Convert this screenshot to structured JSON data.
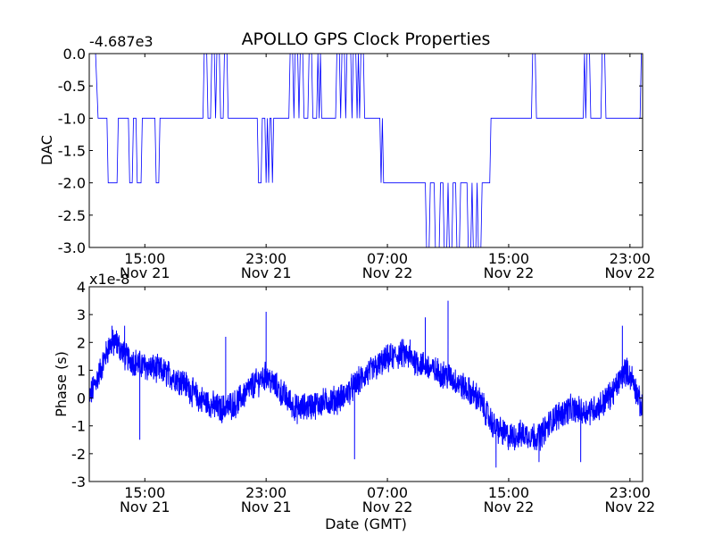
{
  "colors": {
    "series": "#0000ff",
    "axes": "#000000",
    "background": "#ffffff"
  },
  "chart_data": [
    {
      "type": "line",
      "title": "APOLLO GPS Clock Properties",
      "xlabel": "",
      "ylabel": "DAC",
      "y_offset_label": "-4.687e3",
      "ylim": [
        -3.0,
        0.0
      ],
      "xlim": [
        "2008-11-21 11:20",
        "2008-11-22 23:50"
      ],
      "x_ticks": [
        {
          "time": "2008-11-21 15:00",
          "label": "15:00",
          "date_label": "Nov 21"
        },
        {
          "time": "2008-11-21 23:00",
          "label": "23:00",
          "date_label": "Nov 21"
        },
        {
          "time": "2008-11-22 07:00",
          "label": "07:00",
          "date_label": "Nov 22"
        },
        {
          "time": "2008-11-22 15:00",
          "label": "15:00",
          "date_label": "Nov 22"
        },
        {
          "time": "2008-11-22 23:00",
          "label": "23:00",
          "date_label": "Nov 22"
        }
      ],
      "y_ticks": [
        "0.0",
        "-0.5",
        "-1.0",
        "-1.5",
        "-2.0",
        "-2.5",
        "-3.0"
      ],
      "grid": false,
      "series": [
        {
          "color": "#0000ff",
          "points": [
            [
              "2008-11-21 11:20",
              0
            ],
            [
              "2008-11-21 11:45",
              0
            ],
            [
              "2008-11-21 11:55",
              -1
            ],
            [
              "2008-11-21 12:30",
              -1
            ],
            [
              "2008-11-21 12:35",
              -2
            ],
            [
              "2008-11-21 13:10",
              -2
            ],
            [
              "2008-11-21 13:15",
              -1
            ],
            [
              "2008-11-21 13:55",
              -1
            ],
            [
              "2008-11-21 14:00",
              -2
            ],
            [
              "2008-11-21 14:10",
              -2
            ],
            [
              "2008-11-21 14:15",
              -1
            ],
            [
              "2008-11-21 14:25",
              -1
            ],
            [
              "2008-11-21 14:30",
              -2
            ],
            [
              "2008-11-21 14:45",
              -2
            ],
            [
              "2008-11-21 14:50",
              -1
            ],
            [
              "2008-11-21 15:40",
              -1
            ],
            [
              "2008-11-21 15:45",
              -2
            ],
            [
              "2008-11-21 15:55",
              -2
            ],
            [
              "2008-11-21 16:00",
              -1
            ],
            [
              "2008-11-21 18:50",
              -1
            ],
            [
              "2008-11-21 18:55",
              0
            ],
            [
              "2008-11-21 19:05",
              0
            ],
            [
              "2008-11-21 19:10",
              -1
            ],
            [
              "2008-11-21 19:20",
              -1
            ],
            [
              "2008-11-21 19:25",
              0
            ],
            [
              "2008-11-21 19:35",
              0
            ],
            [
              "2008-11-21 19:40",
              -1
            ],
            [
              "2008-11-21 19:45",
              0
            ],
            [
              "2008-11-21 19:55",
              0
            ],
            [
              "2008-11-21 20:00",
              -1
            ],
            [
              "2008-11-21 20:10",
              -1
            ],
            [
              "2008-11-21 20:15",
              0
            ],
            [
              "2008-11-21 20:25",
              0
            ],
            [
              "2008-11-21 20:30",
              -1
            ],
            [
              "2008-11-21 22:25",
              -1
            ],
            [
              "2008-11-21 22:30",
              -2
            ],
            [
              "2008-11-21 22:40",
              -2
            ],
            [
              "2008-11-21 22:45",
              -1
            ],
            [
              "2008-11-21 22:55",
              -1
            ],
            [
              "2008-11-21 23:00",
              -2
            ],
            [
              "2008-11-21 23:05",
              -1
            ],
            [
              "2008-11-21 23:10",
              -2
            ],
            [
              "2008-11-21 23:15",
              -1
            ],
            [
              "2008-11-21 23:20",
              -1
            ],
            [
              "2008-11-21 23:25",
              -2
            ],
            [
              "2008-11-21 23:30",
              -1
            ],
            [
              "2008-11-22 00:30",
              -1
            ],
            [
              "2008-11-22 00:35",
              0
            ],
            [
              "2008-11-22 00:45",
              0
            ],
            [
              "2008-11-22 00:50",
              -1
            ],
            [
              "2008-11-22 00:55",
              0
            ],
            [
              "2008-11-22 01:05",
              0
            ],
            [
              "2008-11-22 01:10",
              -1
            ],
            [
              "2008-11-22 01:15",
              0
            ],
            [
              "2008-11-22 01:25",
              0
            ],
            [
              "2008-11-22 01:30",
              -1
            ],
            [
              "2008-11-22 01:45",
              -1
            ],
            [
              "2008-11-22 01:50",
              0
            ],
            [
              "2008-11-22 02:00",
              0
            ],
            [
              "2008-11-22 02:05",
              -1
            ],
            [
              "2008-11-22 02:20",
              -1
            ],
            [
              "2008-11-22 02:25",
              0
            ],
            [
              "2008-11-22 02:30",
              -1
            ],
            [
              "2008-11-22 02:35",
              0
            ],
            [
              "2008-11-22 02:40",
              -1
            ],
            [
              "2008-11-22 03:35",
              -1
            ],
            [
              "2008-11-22 03:40",
              0
            ],
            [
              "2008-11-22 03:50",
              0
            ],
            [
              "2008-11-22 03:55",
              -1
            ],
            [
              "2008-11-22 04:00",
              0
            ],
            [
              "2008-11-22 04:10",
              0
            ],
            [
              "2008-11-22 04:15",
              -1
            ],
            [
              "2008-11-22 04:20",
              0
            ],
            [
              "2008-11-22 04:35",
              0
            ],
            [
              "2008-11-22 04:40",
              -1
            ],
            [
              "2008-11-22 04:45",
              0
            ],
            [
              "2008-11-22 04:55",
              0
            ],
            [
              "2008-11-22 05:00",
              -1
            ],
            [
              "2008-11-22 05:05",
              0
            ],
            [
              "2008-11-22 05:10",
              -1
            ],
            [
              "2008-11-22 05:15",
              0
            ],
            [
              "2008-11-22 05:25",
              0
            ],
            [
              "2008-11-22 05:30",
              -1
            ],
            [
              "2008-11-22 06:30",
              -1
            ],
            [
              "2008-11-22 06:35",
              -2
            ],
            [
              "2008-11-22 06:40",
              -1
            ],
            [
              "2008-11-22 06:45",
              -2
            ],
            [
              "2008-11-22 09:30",
              -2
            ],
            [
              "2008-11-22 09:35",
              -3
            ],
            [
              "2008-11-22 09:45",
              -3
            ],
            [
              "2008-11-22 09:50",
              -2
            ],
            [
              "2008-11-22 10:05",
              -2
            ],
            [
              "2008-11-22 10:10",
              -3
            ],
            [
              "2008-11-22 10:25",
              -3
            ],
            [
              "2008-11-22 10:30",
              -2
            ],
            [
              "2008-11-22 10:40",
              -2
            ],
            [
              "2008-11-22 10:45",
              -3
            ],
            [
              "2008-11-22 10:55",
              -3
            ],
            [
              "2008-11-22 11:00",
              -2
            ],
            [
              "2008-11-22 11:05",
              -3
            ],
            [
              "2008-11-22 11:15",
              -3
            ],
            [
              "2008-11-22 11:20",
              -2
            ],
            [
              "2008-11-22 11:30",
              -2
            ],
            [
              "2008-11-22 11:35",
              -3
            ],
            [
              "2008-11-22 11:45",
              -3
            ],
            [
              "2008-11-22 11:50",
              -2
            ],
            [
              "2008-11-22 12:15",
              -2
            ],
            [
              "2008-11-22 12:20",
              -3
            ],
            [
              "2008-11-22 12:30",
              -3
            ],
            [
              "2008-11-22 12:35",
              -2
            ],
            [
              "2008-11-22 12:40",
              -3
            ],
            [
              "2008-11-22 12:50",
              -3
            ],
            [
              "2008-11-22 12:55",
              -2
            ],
            [
              "2008-11-22 13:00",
              -3
            ],
            [
              "2008-11-22 13:10",
              -3
            ],
            [
              "2008-11-22 13:15",
              -2
            ],
            [
              "2008-11-22 13:45",
              -2
            ],
            [
              "2008-11-22 13:50",
              -1
            ],
            [
              "2008-11-22 16:30",
              -1
            ],
            [
              "2008-11-22 16:35",
              0
            ],
            [
              "2008-11-22 16:45",
              0
            ],
            [
              "2008-11-22 16:50",
              -1
            ],
            [
              "2008-11-22 19:55",
              -1
            ],
            [
              "2008-11-22 20:00",
              0
            ],
            [
              "2008-11-22 20:05",
              -1
            ],
            [
              "2008-11-22 20:10",
              0
            ],
            [
              "2008-11-22 20:20",
              0
            ],
            [
              "2008-11-22 20:25",
              -1
            ],
            [
              "2008-11-22 21:05",
              -1
            ],
            [
              "2008-11-22 21:10",
              0
            ],
            [
              "2008-11-22 21:20",
              0
            ],
            [
              "2008-11-22 21:25",
              -1
            ],
            [
              "2008-11-22 23:40",
              -1
            ],
            [
              "2008-11-22 23:45",
              0
            ],
            [
              "2008-11-22 23:50",
              0
            ]
          ]
        }
      ]
    },
    {
      "type": "line",
      "title": "",
      "xlabel": "Date (GMT)",
      "ylabel": "Phase (s)",
      "y_scale_label": "x1e-8",
      "ylim": [
        -3,
        4
      ],
      "xlim": [
        "2008-11-21 11:20",
        "2008-11-22 23:50"
      ],
      "x_ticks": [
        {
          "time": "2008-11-21 15:00",
          "label": "15:00",
          "date_label": "Nov 21"
        },
        {
          "time": "2008-11-21 23:00",
          "label": "23:00",
          "date_label": "Nov 21"
        },
        {
          "time": "2008-11-22 07:00",
          "label": "07:00",
          "date_label": "Nov 22"
        },
        {
          "time": "2008-11-22 15:00",
          "label": "15:00",
          "date_label": "Nov 22"
        },
        {
          "time": "2008-11-22 23:00",
          "label": "23:00",
          "date_label": "Nov 22"
        }
      ],
      "y_ticks": [
        "4",
        "3",
        "2",
        "1",
        "0",
        "-1",
        "-2",
        "-3"
      ],
      "grid": false,
      "noise_amplitude": 0.45,
      "series": [
        {
          "color": "#0000ff",
          "trend": [
            [
              "2008-11-21 11:20",
              0.0
            ],
            [
              "2008-11-21 12:00",
              0.9
            ],
            [
              "2008-11-21 12:40",
              1.9
            ],
            [
              "2008-11-21 13:10",
              2.0
            ],
            [
              "2008-11-21 13:40",
              1.5
            ],
            [
              "2008-11-21 14:40",
              1.2
            ],
            [
              "2008-11-21 16:00",
              1.0
            ],
            [
              "2008-11-21 17:30",
              0.6
            ],
            [
              "2008-11-21 18:30",
              0.0
            ],
            [
              "2008-11-21 20:00",
              -0.4
            ],
            [
              "2008-11-21 21:00",
              -0.2
            ],
            [
              "2008-11-21 22:00",
              0.4
            ],
            [
              "2008-11-21 23:00",
              0.8
            ],
            [
              "2008-11-21 23:50",
              0.3
            ],
            [
              "2008-11-22 01:00",
              -0.4
            ],
            [
              "2008-11-22 02:30",
              -0.2
            ],
            [
              "2008-11-22 04:00",
              0.0
            ],
            [
              "2008-11-22 05:30",
              0.8
            ],
            [
              "2008-11-22 07:00",
              1.4
            ],
            [
              "2008-11-22 08:00",
              1.6
            ],
            [
              "2008-11-22 09:00",
              1.3
            ],
            [
              "2008-11-22 10:00",
              1.0
            ],
            [
              "2008-11-22 11:00",
              0.8
            ],
            [
              "2008-11-22 12:00",
              0.4
            ],
            [
              "2008-11-22 13:00",
              0.0
            ],
            [
              "2008-11-22 14:00",
              -1.0
            ],
            [
              "2008-11-22 15:00",
              -1.4
            ],
            [
              "2008-11-22 16:00",
              -1.3
            ],
            [
              "2008-11-22 17:00",
              -1.4
            ],
            [
              "2008-11-22 18:00",
              -0.7
            ],
            [
              "2008-11-22 19:00",
              -0.4
            ],
            [
              "2008-11-22 20:00",
              -0.5
            ],
            [
              "2008-11-22 21:00",
              -0.3
            ],
            [
              "2008-11-22 22:00",
              0.3
            ],
            [
              "2008-11-22 22:40",
              1.0
            ],
            [
              "2008-11-22 23:10",
              0.7
            ],
            [
              "2008-11-22 23:50",
              -0.5
            ]
          ],
          "spikes": [
            [
              "2008-11-21 12:50",
              2.6
            ],
            [
              "2008-11-21 13:40",
              2.6
            ],
            [
              "2008-11-21 14:40",
              -1.5
            ],
            [
              "2008-11-21 20:20",
              2.2
            ],
            [
              "2008-11-21 23:00",
              3.1
            ],
            [
              "2008-11-22 04:50",
              -2.2
            ],
            [
              "2008-11-22 08:30",
              2.1
            ],
            [
              "2008-11-22 09:30",
              2.9
            ],
            [
              "2008-11-22 11:00",
              3.5
            ],
            [
              "2008-11-22 14:10",
              -2.5
            ],
            [
              "2008-11-22 17:00",
              -2.3
            ],
            [
              "2008-11-22 19:45",
              -2.3
            ],
            [
              "2008-11-22 22:30",
              2.6
            ]
          ]
        }
      ]
    }
  ]
}
